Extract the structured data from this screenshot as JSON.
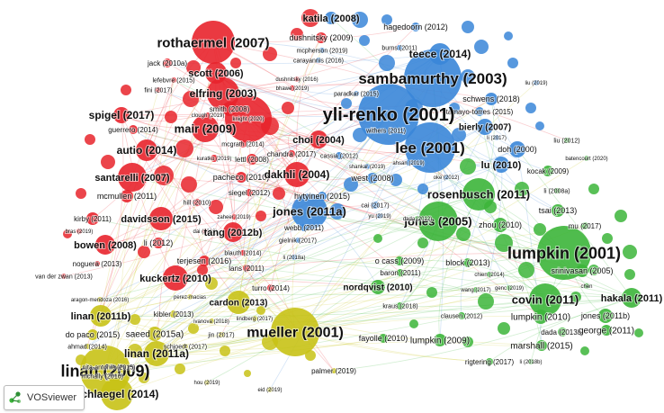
{
  "app": {
    "name": "VOSviewer",
    "logo_icon": "vosviewer-logo-icon"
  },
  "clusters": {
    "red": {
      "color": "#e8242c"
    },
    "blue": {
      "color": "#3a86d8"
    },
    "green": {
      "color": "#3cb53a"
    },
    "yellow": {
      "color": "#c8c216"
    }
  },
  "nodes": [
    {
      "label": "rothaermel (2007)",
      "cluster": "red"
    },
    {
      "label": "scott (2006)",
      "cluster": "red"
    },
    {
      "label": "jack (2010a)",
      "cluster": "red"
    },
    {
      "label": "lefebvre (2015)",
      "cluster": "red"
    },
    {
      "label": "fini (2017)",
      "cluster": "red"
    },
    {
      "label": "elfring (2003)",
      "cluster": "red"
    },
    {
      "label": "smith (2008)",
      "cluster": "red"
    },
    {
      "label": "clough (2019)",
      "cluster": "red"
    },
    {
      "label": "knight (2020)",
      "cluster": "red"
    },
    {
      "label": "spigel (2017)",
      "cluster": "red"
    },
    {
      "label": "mair (2009)",
      "cluster": "red"
    },
    {
      "label": "guerrero (2014)",
      "cluster": "red"
    },
    {
      "label": "mcgrath (2014)",
      "cluster": "red"
    },
    {
      "label": "autio (2014)",
      "cluster": "red"
    },
    {
      "label": "kuratko (2019)",
      "cluster": "red"
    },
    {
      "label": "lettl (2008)",
      "cluster": "red"
    },
    {
      "label": "santarelli (2007)",
      "cluster": "red"
    },
    {
      "label": "pacheco (2010)",
      "cluster": "red"
    },
    {
      "label": "mcmullen (2011)",
      "cluster": "red"
    },
    {
      "label": "siegel (2012)",
      "cluster": "red"
    },
    {
      "label": "hill (2010)",
      "cluster": "red"
    },
    {
      "label": "kirby (2011)",
      "cluster": "red"
    },
    {
      "label": "davidsson (2015)",
      "cluster": "red"
    },
    {
      "label": "zaheer (2019)",
      "cluster": "red"
    },
    {
      "label": "bras (2019)",
      "cluster": "red"
    },
    {
      "label": "dai (2019)",
      "cluster": "red"
    },
    {
      "label": "li (2012)",
      "cluster": "red"
    },
    {
      "label": "tang (2012b)",
      "cluster": "red"
    },
    {
      "label": "bowen (2008)",
      "cluster": "red"
    },
    {
      "label": "blauth (2014)",
      "cluster": "red"
    },
    {
      "label": "terjesen (2016)",
      "cluster": "red"
    },
    {
      "label": "noguera (2013)",
      "cluster": "red"
    },
    {
      "label": "van der zwan (2013)",
      "cluster": "red"
    },
    {
      "label": "lans (2011)",
      "cluster": "red"
    },
    {
      "label": "kuckertz (2010)",
      "cluster": "red"
    },
    {
      "label": "turro (2014)",
      "cluster": "red"
    },
    {
      "label": "dushnitsky (2016)",
      "cluster": "red"
    },
    {
      "label": "bhawe (2019)",
      "cluster": "red"
    },
    {
      "label": "dakhli (2004)",
      "cluster": "red"
    },
    {
      "label": "chandra (2017)",
      "cluster": "red"
    },
    {
      "label": "choi (2004)",
      "cluster": "red"
    },
    {
      "label": "dushnitsky (2009)",
      "cluster": "red"
    },
    {
      "label": "katila (2008)",
      "cluster": "blue"
    },
    {
      "label": "hagedoorn (2012)",
      "cluster": "blue"
    },
    {
      "label": "mcpherson (2019)",
      "cluster": "blue"
    },
    {
      "label": "carayannis (2016)",
      "cluster": "blue"
    },
    {
      "label": "burns (2011)",
      "cluster": "blue"
    },
    {
      "label": "teece (2014)",
      "cluster": "blue"
    },
    {
      "label": "sambamurthy (2003)",
      "cluster": "blue"
    },
    {
      "label": "paradkar (2015)",
      "cluster": "blue"
    },
    {
      "label": "liu (2019)",
      "cluster": "blue"
    },
    {
      "label": "schwens (2018)",
      "cluster": "blue"
    },
    {
      "label": "tamayo-torres (2015)",
      "cluster": "blue"
    },
    {
      "label": "yli-renko (2001)",
      "cluster": "blue"
    },
    {
      "label": "bierly (2007)",
      "cluster": "blue"
    },
    {
      "label": "li (2017)",
      "cluster": "blue"
    },
    {
      "label": "withers (2011)",
      "cluster": "blue"
    },
    {
      "label": "lee (2001)",
      "cluster": "blue"
    },
    {
      "label": "doh (2000)",
      "cluster": "blue"
    },
    {
      "label": "cassia (2012)",
      "cluster": "blue"
    },
    {
      "label": "shankar (2019)",
      "cluster": "blue"
    },
    {
      "label": "ahsan (2019)",
      "cluster": "blue"
    },
    {
      "label": "lu (2010)",
      "cluster": "blue"
    },
    {
      "label": "west (2008)",
      "cluster": "blue"
    },
    {
      "label": "oke (2012)",
      "cluster": "blue"
    },
    {
      "label": "hytyinen (2015)",
      "cluster": "blue"
    },
    {
      "label": "cai (2017)",
      "cluster": "blue"
    },
    {
      "label": "yu (2019)",
      "cluster": "blue"
    },
    {
      "label": "jones (2011a)",
      "cluster": "blue"
    },
    {
      "label": "webb (2011)",
      "cluster": "blue"
    },
    {
      "label": "gielnik (2017)",
      "cluster": "blue"
    },
    {
      "label": "li (2018a)",
      "cluster": "blue"
    },
    {
      "label": "liu (2012)",
      "cluster": "green"
    },
    {
      "label": "batencourt (2020)",
      "cluster": "green"
    },
    {
      "label": "kocak (2009)",
      "cluster": "green"
    },
    {
      "label": "rosenbusch (2011)",
      "cluster": "green"
    },
    {
      "label": "li (2008a)",
      "cluster": "green"
    },
    {
      "label": "jones (2005)",
      "cluster": "green"
    },
    {
      "label": "zhou (2010)",
      "cluster": "green"
    },
    {
      "label": "tsai (2013)",
      "cluster": "green"
    },
    {
      "label": "dada (2012)",
      "cluster": "green"
    },
    {
      "label": "mu (2017)",
      "cluster": "green"
    },
    {
      "label": "lumpkin (2001)",
      "cluster": "green"
    },
    {
      "label": "o cass (2009)",
      "cluster": "green"
    },
    {
      "label": "block (2013)",
      "cluster": "green"
    },
    {
      "label": "srinivasan (2005)",
      "cluster": "green"
    },
    {
      "label": "baron (2011)",
      "cluster": "green"
    },
    {
      "label": "chien (2014)",
      "cluster": "green"
    },
    {
      "label": "nordqvist (2010)",
      "cluster": "green"
    },
    {
      "label": "wang (2017)",
      "cluster": "green"
    },
    {
      "label": "genc (2019)",
      "cluster": "green"
    },
    {
      "label": "chen",
      "cluster": "green"
    },
    {
      "label": "covin (2011)",
      "cluster": "green"
    },
    {
      "label": "hakala (2011)",
      "cluster": "green"
    },
    {
      "label": "kraus (2018)",
      "cluster": "green"
    },
    {
      "label": "clausen (2012)",
      "cluster": "green"
    },
    {
      "label": "lumpkin (2010)",
      "cluster": "green"
    },
    {
      "label": "dada (2013b)",
      "cluster": "green"
    },
    {
      "label": "jones (2011b)",
      "cluster": "green"
    },
    {
      "label": "george (2011)",
      "cluster": "green"
    },
    {
      "label": "fayolle (2010)",
      "cluster": "green"
    },
    {
      "label": "lumpkin (2009)",
      "cluster": "green"
    },
    {
      "label": "marshall (2015)",
      "cluster": "green"
    },
    {
      "label": "rigtering (2017)",
      "cluster": "green"
    },
    {
      "label": "li (2018b)",
      "cluster": "green"
    },
    {
      "label": "aragon-mendoza (2016)",
      "cluster": "yellow"
    },
    {
      "label": "perez-macias",
      "cluster": "yellow"
    },
    {
      "label": "cardon (2013)",
      "cluster": "yellow"
    },
    {
      "label": "linan (2011b)",
      "cluster": "yellow"
    },
    {
      "label": "kibler (2013)",
      "cluster": "yellow"
    },
    {
      "label": "ivanova (2018)",
      "cluster": "yellow"
    },
    {
      "label": "lindberg (2017)",
      "cluster": "yellow"
    },
    {
      "label": "do paco (2015)",
      "cluster": "yellow"
    },
    {
      "label": "saeed (2015a)",
      "cluster": "yellow"
    },
    {
      "label": "jin (2017)",
      "cluster": "yellow"
    },
    {
      "label": "mueller (2001)",
      "cluster": "yellow"
    },
    {
      "label": "ahmad (2014)",
      "cluster": "yellow"
    },
    {
      "label": "schjoedt (2017)",
      "cluster": "yellow"
    },
    {
      "label": "linan (2011a)",
      "cluster": "yellow"
    },
    {
      "label": "linan (2009)",
      "cluster": "yellow"
    },
    {
      "label": "nita-antonie (2015)",
      "cluster": "yellow"
    },
    {
      "label": "mcnally (2016)",
      "cluster": "yellow"
    },
    {
      "label": "palmer (2019)",
      "cluster": "yellow"
    },
    {
      "label": "hou (2019)",
      "cluster": "yellow"
    },
    {
      "label": "eid (2019)",
      "cluster": "yellow"
    },
    {
      "label": "schlaegel (2014)",
      "cluster": "yellow"
    }
  ]
}
